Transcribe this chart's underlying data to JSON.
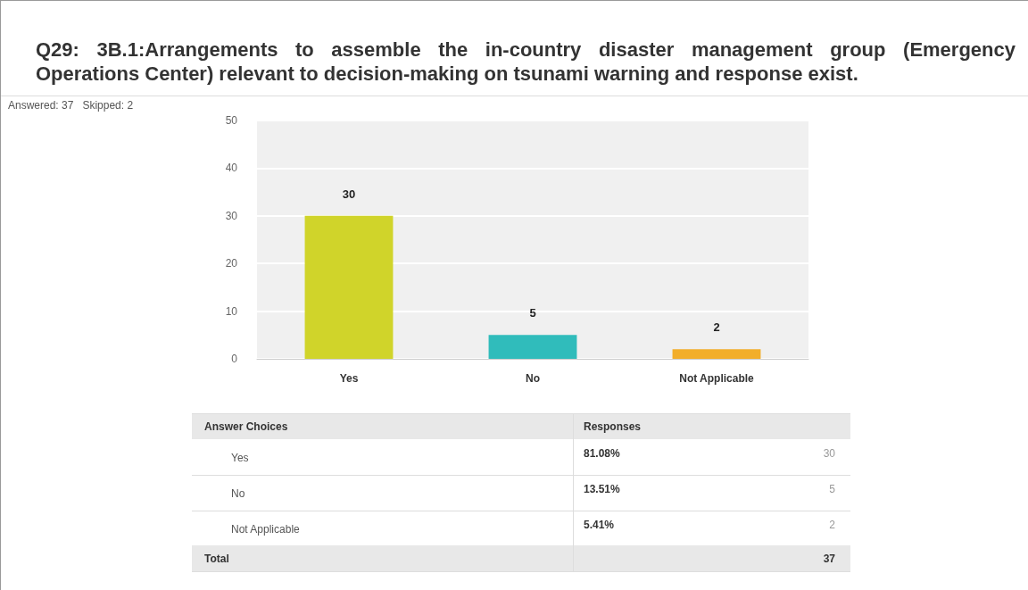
{
  "chart_data": {
    "type": "bar",
    "title": "Q29: 3B.1:Arrangements to assemble the in-country disaster management group (Emergency Operations Center) relevant to decision-making on tsunami warning and response exist.",
    "subtitle": "Answered: 37   Skipped: 2",
    "categories": [
      "Yes",
      "No",
      "Not Applicable"
    ],
    "values": [
      30,
      5,
      2
    ],
    "colors": [
      "#d0d42a",
      "#30bcbb",
      "#f2ae2b"
    ],
    "ylim": [
      0,
      50
    ],
    "yticks": [
      0,
      10,
      20,
      30,
      40,
      50
    ],
    "grid": "y",
    "data_labels": true,
    "annotations": [
      "Answer Choices",
      "Responses",
      "81.08%",
      "30",
      "13.51%",
      "5",
      "5.41%",
      "2",
      "Total",
      "37"
    ]
  }
}
